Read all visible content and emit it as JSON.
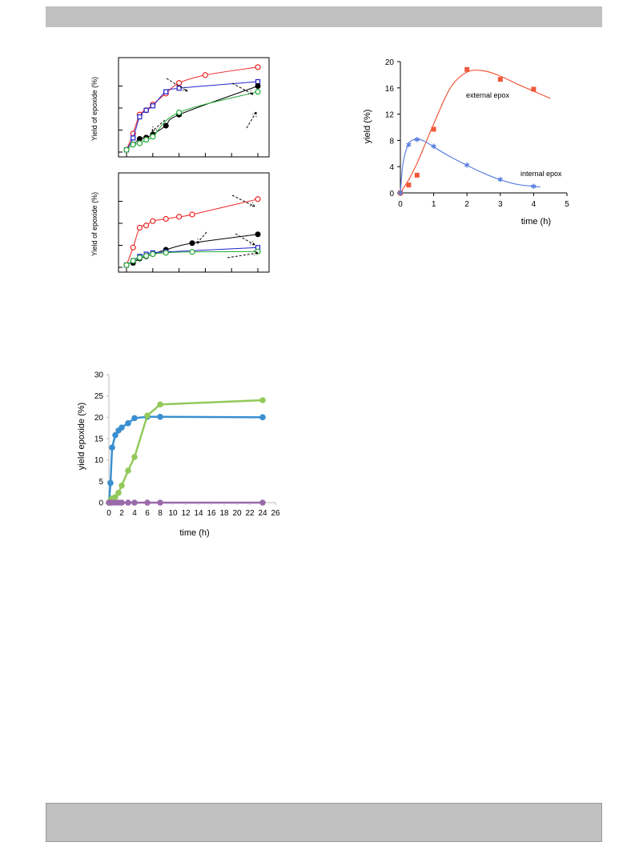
{
  "colors": {
    "red": "#ee2222",
    "blue": "#2222cc",
    "black": "#000000",
    "green": "#22aa33",
    "orange": "#f0583a",
    "lightblue": "#5b7fe0",
    "c_blue": "#3a8fd0",
    "c_green": "#93c95a",
    "c_purple": "#9a6aaa",
    "bar": "#c0c0c0"
  },
  "chart_data": [
    {
      "type": "line",
      "ylabel": "Yield of epoxide (%)",
      "grid": false,
      "legend": "none",
      "series": [
        {
          "color": "#ee2222",
          "marker": "open-circle",
          "points": [
            [
              0,
              0.5
            ],
            [
              0.5,
              4.2
            ],
            [
              1,
              8.5
            ],
            [
              1.5,
              9.5
            ],
            [
              2,
              10.8
            ],
            [
              3,
              13.3
            ],
            [
              4,
              15.7
            ],
            [
              6,
              17.5
            ],
            [
              10,
              19.3
            ]
          ]
        },
        {
          "color": "#2222cc",
          "marker": "open-square",
          "points": [
            [
              0,
              0.5
            ],
            [
              0.5,
              3.2
            ],
            [
              1,
              8
            ],
            [
              1.5,
              9.5
            ],
            [
              2,
              10.5
            ],
            [
              3,
              13.7
            ],
            [
              4,
              14.5
            ],
            [
              10,
              16
            ]
          ]
        },
        {
          "color": "#000000",
          "marker": "filled-circle",
          "points": [
            [
              0.5,
              1.7
            ],
            [
              1,
              3
            ],
            [
              1.5,
              3.3
            ],
            [
              2,
              4
            ],
            [
              3,
              6
            ],
            [
              4,
              8.5
            ],
            [
              10,
              15
            ]
          ]
        },
        {
          "color": "#22aa33",
          "marker": "open-circle",
          "points": [
            [
              0,
              0.5
            ],
            [
              0.5,
              1.7
            ],
            [
              1,
              2
            ],
            [
              1.5,
              2.8
            ],
            [
              2,
              3.5
            ],
            [
              4,
              9
            ],
            [
              10,
              13.7
            ]
          ]
        }
      ]
    },
    {
      "type": "line",
      "ylabel": "Yield of epoxide (%)",
      "grid": false,
      "legend": "none",
      "series": [
        {
          "color": "#ee2222",
          "marker": "open-circle",
          "points": [
            [
              0,
              0.5
            ],
            [
              0.5,
              4.5
            ],
            [
              1,
              9
            ],
            [
              1.5,
              9.5
            ],
            [
              2,
              10.5
            ],
            [
              3,
              11
            ],
            [
              4,
              11.5
            ],
            [
              5,
              12
            ],
            [
              10,
              15.5
            ]
          ]
        },
        {
          "color": "#000000",
          "marker": "filled-circle",
          "points": [
            [
              0.5,
              1
            ],
            [
              1,
              2
            ],
            [
              1.5,
              2.5
            ],
            [
              2,
              3
            ],
            [
              3,
              4
            ],
            [
              5,
              5.5
            ],
            [
              10,
              7.5
            ]
          ]
        },
        {
          "color": "#2222cc",
          "marker": "open-square",
          "points": [
            [
              0,
              0.5
            ],
            [
              0.5,
              1.5
            ],
            [
              1,
              2.5
            ],
            [
              1.5,
              3
            ],
            [
              2,
              3.3
            ],
            [
              3,
              3.5
            ],
            [
              10,
              4.5
            ]
          ]
        },
        {
          "color": "#22aa33",
          "marker": "open-circle",
          "points": [
            [
              0,
              0.5
            ],
            [
              0.5,
              1.5
            ],
            [
              1,
              2.2
            ],
            [
              1.5,
              2.6
            ],
            [
              2,
              3
            ],
            [
              3,
              3.3
            ],
            [
              5,
              3.5
            ],
            [
              10,
              3.6
            ]
          ]
        }
      ]
    },
    {
      "type": "line",
      "xlabel": "time (h)",
      "ylabel": "yield (%)",
      "xlim": [
        0,
        5
      ],
      "ylim": [
        0,
        20
      ],
      "xticks": [
        "0",
        "1",
        "2",
        "3",
        "4",
        "5"
      ],
      "yticks": [
        "0",
        "4",
        "8",
        "12",
        "16",
        "20"
      ],
      "grid": false,
      "legend": "none",
      "annotations": [
        "external epox",
        "internal epox"
      ],
      "series": [
        {
          "color": "#f0583a",
          "marker": "square",
          "points": [
            [
              0,
              0
            ],
            [
              0.25,
              1.2
            ],
            [
              0.5,
              2.7
            ],
            [
              1,
              9.7
            ],
            [
              2,
              18.8
            ],
            [
              3,
              17.3
            ],
            [
              4,
              15.8
            ]
          ]
        },
        {
          "color": "#5b7fe0",
          "marker": "star",
          "points": [
            [
              0,
              0
            ],
            [
              0.25,
              7.3
            ],
            [
              0.5,
              8.1
            ],
            [
              1,
              7.1
            ],
            [
              2,
              4.2
            ],
            [
              3,
              2.0
            ],
            [
              4,
              1.0
            ]
          ]
        }
      ]
    },
    {
      "type": "line",
      "xlabel": "time (h)",
      "ylabel": "yield epoxide (%)",
      "xlim": [
        0,
        26
      ],
      "ylim": [
        0,
        30
      ],
      "xticks": [
        "0",
        "2",
        "4",
        "6",
        "8",
        "10",
        "12",
        "14",
        "16",
        "18",
        "20",
        "22",
        "24",
        "26"
      ],
      "yticks": [
        "0",
        "5",
        "10",
        "15",
        "20",
        "25",
        "30"
      ],
      "grid": false,
      "legend": "none",
      "series": [
        {
          "color": "#3a8fd0",
          "marker": "filled-circle",
          "points": [
            [
              0,
              0
            ],
            [
              0.25,
              4.6
            ],
            [
              0.5,
              12.9
            ],
            [
              1,
              15.8
            ],
            [
              1.5,
              16.9
            ],
            [
              2,
              17.6
            ],
            [
              3,
              18.6
            ],
            [
              4,
              19.8
            ],
            [
              6,
              20.1
            ],
            [
              8,
              20.1
            ],
            [
              24,
              20
            ]
          ]
        },
        {
          "color": "#93c95a",
          "marker": "filled-circle",
          "points": [
            [
              0,
              0
            ],
            [
              0.25,
              0.5
            ],
            [
              0.5,
              1
            ],
            [
              1,
              1.3
            ],
            [
              1.5,
              2.3
            ],
            [
              2,
              4.0
            ],
            [
              3,
              7.5
            ],
            [
              4,
              10.7
            ],
            [
              6,
              20.4
            ],
            [
              8,
              23.0
            ],
            [
              24,
              24.0
            ]
          ]
        },
        {
          "color": "#9a6aaa",
          "marker": "filled-circle",
          "points": [
            [
              0,
              0
            ],
            [
              0.25,
              0
            ],
            [
              0.5,
              0
            ],
            [
              1,
              0
            ],
            [
              1.5,
              0
            ],
            [
              2,
              0
            ],
            [
              3,
              0
            ],
            [
              4,
              0
            ],
            [
              6,
              0
            ],
            [
              8,
              0
            ],
            [
              24,
              0
            ]
          ]
        }
      ]
    }
  ]
}
